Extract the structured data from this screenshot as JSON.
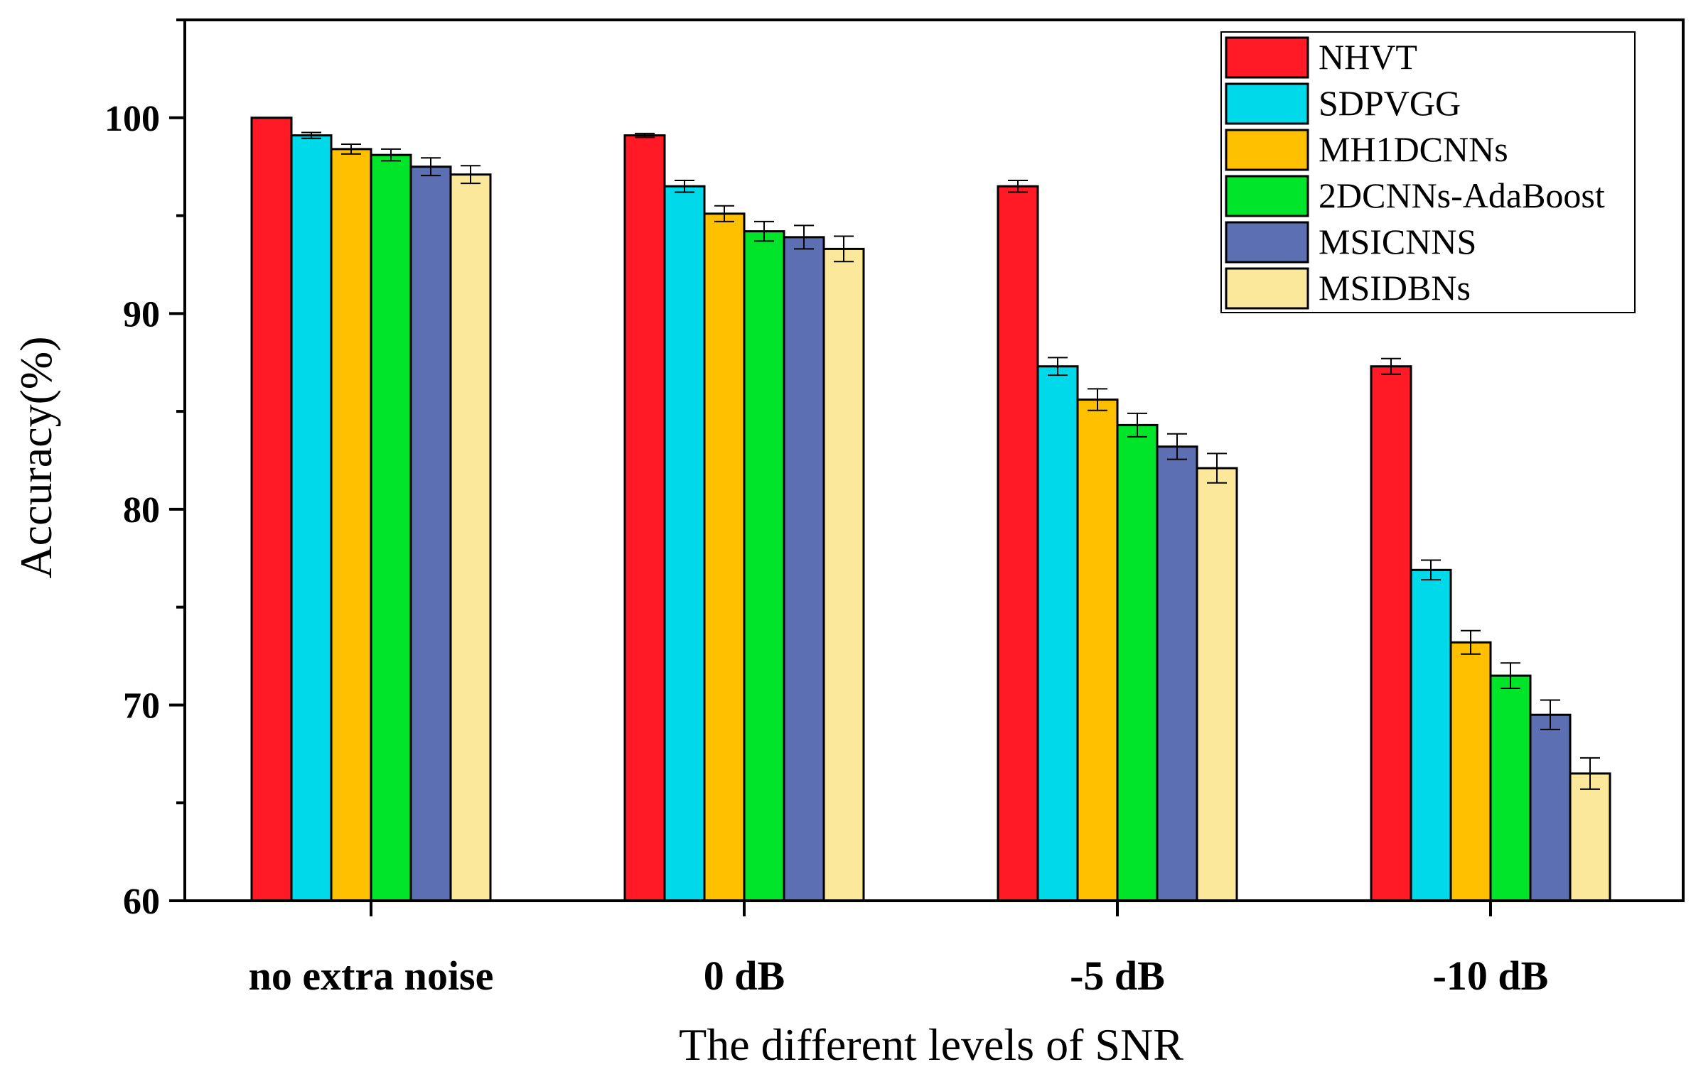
{
  "chart_data": {
    "type": "bar",
    "title": "",
    "xlabel": "The different levels of SNR",
    "ylabel": "Accuracy(%)",
    "ylim": [
      60,
      105
    ],
    "yticks": [
      60,
      70,
      80,
      90,
      100
    ],
    "grid": false,
    "legend_position": "top-right",
    "categories": [
      "no extra noise",
      "0 dB",
      "-5 dB",
      "-10 dB"
    ],
    "series": [
      {
        "name": "NHVT",
        "color": "#ff1a25",
        "values": [
          100.0,
          99.1,
          96.5,
          87.3
        ],
        "errors": [
          0.0,
          0.1,
          0.3,
          0.4
        ]
      },
      {
        "name": "SDPVGG",
        "color": "#00d9ea",
        "values": [
          99.1,
          96.5,
          87.3,
          76.9
        ],
        "errors": [
          0.15,
          0.3,
          0.45,
          0.5
        ]
      },
      {
        "name": "MH1DCNNs",
        "color": "#ffc000",
        "values": [
          98.4,
          95.1,
          85.6,
          73.2
        ],
        "errors": [
          0.25,
          0.4,
          0.55,
          0.6
        ]
      },
      {
        "name": "2DCNNs-AdaBoost",
        "color": "#00e42a",
        "values": [
          98.1,
          94.2,
          84.3,
          71.5
        ],
        "errors": [
          0.3,
          0.5,
          0.6,
          0.65
        ]
      },
      {
        "name": "MSICNNS",
        "color": "#5c6fb2",
        "values": [
          97.5,
          93.9,
          83.2,
          69.5
        ],
        "errors": [
          0.45,
          0.6,
          0.65,
          0.75
        ]
      },
      {
        "name": "MSIDBNs",
        "color": "#fce89a",
        "values": [
          97.1,
          93.3,
          82.1,
          66.5
        ],
        "errors": [
          0.45,
          0.65,
          0.75,
          0.8
        ]
      }
    ]
  }
}
